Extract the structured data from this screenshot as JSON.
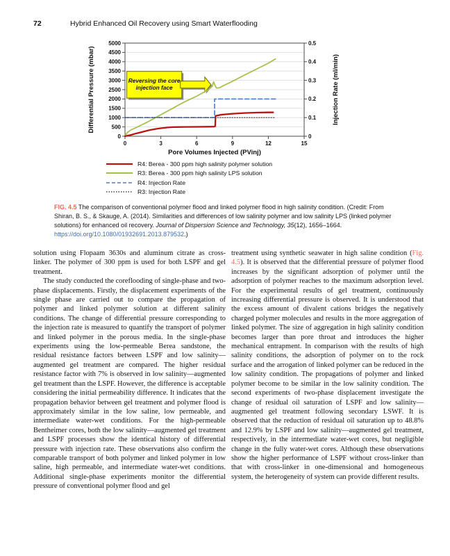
{
  "page": {
    "number": "72",
    "running_title": "Hybrid Enhanced Oil Recovery using Smart Waterflooding"
  },
  "chart_data": {
    "type": "line",
    "title": "",
    "xlabel": "Pore Volumes Injected (PVinj)",
    "ylabel_left": "Differential Pressure (mbar)",
    "ylabel_right": "Injection Rate (ml/min)",
    "xlim": [
      0,
      15
    ],
    "xticks": [
      0,
      3,
      6,
      9,
      12,
      15
    ],
    "ylim_left": [
      0,
      5000
    ],
    "yticks_left": [
      0,
      500,
      1000,
      1500,
      2000,
      2500,
      3000,
      3500,
      4000,
      4500,
      5000
    ],
    "ylim_right": [
      0,
      0.5
    ],
    "yticks_right": [
      0,
      0.1,
      0.2,
      0.3,
      0.4,
      0.5
    ],
    "grid": "horizontal",
    "frame_color": "#4a4a4a",
    "grid_color": "#d9d9d9",
    "annotation": {
      "lines": [
        "Reversing the core",
        "injection face"
      ],
      "box": {
        "x0": 0.15,
        "x1": 4.75,
        "y0": 2050,
        "y1": 3480
      },
      "arrow": {
        "tip_x": 7.2,
        "y": 2770
      },
      "fill": "#FFFF00",
      "border": "#6E6E00",
      "shadow": "#8a8a8a"
    },
    "series": [
      {
        "name": "R3: Berea - 300 ppm high salinity LPS solution",
        "color": "#A6C249",
        "style": "solid",
        "width": 1.8,
        "axis": "left",
        "points": [
          [
            0,
            20
          ],
          [
            0.2,
            200
          ],
          [
            0.5,
            340
          ],
          [
            1,
            480
          ],
          [
            1.5,
            640
          ],
          [
            2,
            800
          ],
          [
            2.5,
            980
          ],
          [
            3,
            1150
          ],
          [
            3.5,
            1330
          ],
          [
            4,
            1500
          ],
          [
            4.5,
            1680
          ],
          [
            5,
            1850
          ],
          [
            5.5,
            2000
          ],
          [
            6,
            2150
          ],
          [
            6.5,
            2330
          ],
          [
            7,
            2500
          ],
          [
            7.3,
            2680
          ],
          [
            7.42,
            2920
          ],
          [
            7.55,
            2700
          ],
          [
            7.65,
            2590
          ],
          [
            7.9,
            2600
          ],
          [
            8.2,
            2700
          ],
          [
            9,
            2950
          ],
          [
            10,
            3280
          ],
          [
            11,
            3600
          ],
          [
            12,
            3920
          ],
          [
            12.6,
            4150
          ]
        ]
      },
      {
        "name": "R4: Berea - 300 ppm high salinity polymer solution",
        "color": "#B81412",
        "style": "solid",
        "width": 2.3,
        "axis": "left",
        "points": [
          [
            0,
            0
          ],
          [
            0.5,
            70
          ],
          [
            1,
            160
          ],
          [
            1.5,
            240
          ],
          [
            2,
            320
          ],
          [
            2.5,
            380
          ],
          [
            3,
            430
          ],
          [
            3.5,
            465
          ],
          [
            4,
            490
          ],
          [
            5,
            500
          ],
          [
            6,
            505
          ],
          [
            7,
            510
          ],
          [
            7.45,
            515
          ],
          [
            7.55,
            540
          ],
          [
            7.58,
            1090
          ],
          [
            8,
            1150
          ],
          [
            8.5,
            1180
          ],
          [
            9,
            1210
          ],
          [
            10,
            1248
          ],
          [
            11,
            1268
          ],
          [
            12,
            1278
          ],
          [
            12.4,
            1280
          ]
        ]
      },
      {
        "name": "R4: Injection Rate",
        "color": "#4B79CB",
        "style": "dashed",
        "width": 1.6,
        "axis": "right",
        "points": [
          [
            0,
            0.1
          ],
          [
            7.5,
            0.1
          ],
          [
            7.5,
            0.2
          ],
          [
            12.7,
            0.2
          ]
        ]
      },
      {
        "name": "R3: Injection Rate",
        "color": "#3F3F3F",
        "style": "dotted",
        "width": 1.1,
        "axis": "right",
        "points": [
          [
            0,
            0.1
          ],
          [
            12.55,
            0.1
          ]
        ]
      }
    ]
  },
  "figure": {
    "legend": [
      {
        "label": "R4: Berea - 300 ppm high salinity polymer solution",
        "color": "#B81412",
        "style": "solid"
      },
      {
        "label": "R3: Berea - 300 ppm high salinity LPS solution",
        "color": "#A6C249",
        "style": "solid"
      },
      {
        "label": "R4: Injection Rate",
        "color": "#4B79CB",
        "style": "dashed"
      },
      {
        "label": "R3: Injection Rate",
        "color": "#3F3F3F",
        "style": "dotted"
      }
    ],
    "caption_segments": [
      {
        "t": "FIG. 4.5",
        "s": "figlabel"
      },
      {
        "t": "  The comparison of conventional polymer flood and linked polymer flood in high salinity condition. (Credit: From Shiran, B. S., & Skauge, A. (2014). Similarities and differences of low salinity polymer and low salinity LPS (linked polymer solutions) for enhanced oil recovery. ",
        "s": ""
      },
      {
        "t": "Journal of Dispersion Science and Technology, 35",
        "s": "italic"
      },
      {
        "t": "(12), 1656–1664. ",
        "s": ""
      },
      {
        "t": "https://doi.org/10.1080/01932691.2013.879532",
        "s": "link"
      },
      {
        "t": ".)",
        "s": ""
      }
    ]
  },
  "body": {
    "left_column": [
      {
        "indent": false,
        "segments": [
          {
            "t": "solution using Flopaam 3630s and aluminum citrate as cross-linker. The polymer of 300 ppm is used for both LSPF and gel treatment.",
            "s": ""
          }
        ]
      },
      {
        "indent": true,
        "segments": [
          {
            "t": "The study conducted the coreflooding of single-phase and two-phase displacements. Firstly, the displacement experiments of the single phase are carried out to compare the propagation of polymer and linked polymer solution at different salinity conditions. The change of differential pressure corresponding to the injection rate is measured to quantify the transport of polymer and linked polymer in the porous media. In the single-phase experiments using the low-permeable Berea sandstone, the residual resistance factors between LSPF and low salinity—augmented gel treatment are compared. The higher residual resistance factor with 7% is observed in low salinity—augmented gel treatment than the LSPF. However, the difference is acceptable considering the initial permeability difference. It indicates that the propagation behavior between gel treatment and polymer flood is approximately similar in the low saline, low permeable, and intermediate water-wet conditions. For the high-permeable Bentheimer cores, both the low salinity—augmented gel treatment and LSPF processes show the identical history of differential pressure with injection rate. These observations also confirm the comparable transport of both polymer and linked polymer in low saline, high permeable, and intermediate water-wet conditions. Additional single-phase experiments monitor the differential pressure of conventional polymer flood and gel",
            "s": ""
          }
        ]
      }
    ],
    "right_column": [
      {
        "indent": false,
        "segments": [
          {
            "t": "treatment using synthetic seawater in high saline condition (",
            "s": ""
          },
          {
            "t": "Fig. 4.5",
            "s": "figref"
          },
          {
            "t": "). It is observed that the differential pressure of polymer flood increases by the significant adsorption of polymer until the adsorption of polymer reaches to the maximum adsorption level. For the experimental results of gel treatment, continuously increasing differential pressure is observed. It is understood that the excess amount of divalent cations bridges the negatively charged polymer molecules and results in the more aggregation of linked polymer. The size of aggregation in high salinity condition becomes larger than pore throat and introduces the higher mechanical entrapment. In comparison with the results of high salinity conditions, the adsorption of polymer on to the rock surface and the arrogation of linked polymer can be reduced in the low salinity condition. The propagations of polymer and linked polymer become to be similar in the low salinity condition. The second experiments of two-phase displacement investigate the change of residual oil saturation of LSPF and low salinity—augmented gel treatment following secondary LSWF. It is observed that the reduction of residual oil saturation up to 48.8% and 12.9% by LSPF and low salinity—augmented gel treatment, respectively, in the intermediate water-wet cores, but negligible change in the fully water-wet cores. Although these observations show the higher performance of LSPF without cross-linker than that with cross-linker in one-dimensional and homogeneous system, the heterogeneity of system can provide different results.",
            "s": ""
          }
        ]
      }
    ]
  },
  "colors": {
    "fig_label_orange": "#F26649",
    "figref_orange": "#E9735C",
    "link_blue": "#3A6FB7",
    "annotation_yellow": "#FFFF00"
  }
}
